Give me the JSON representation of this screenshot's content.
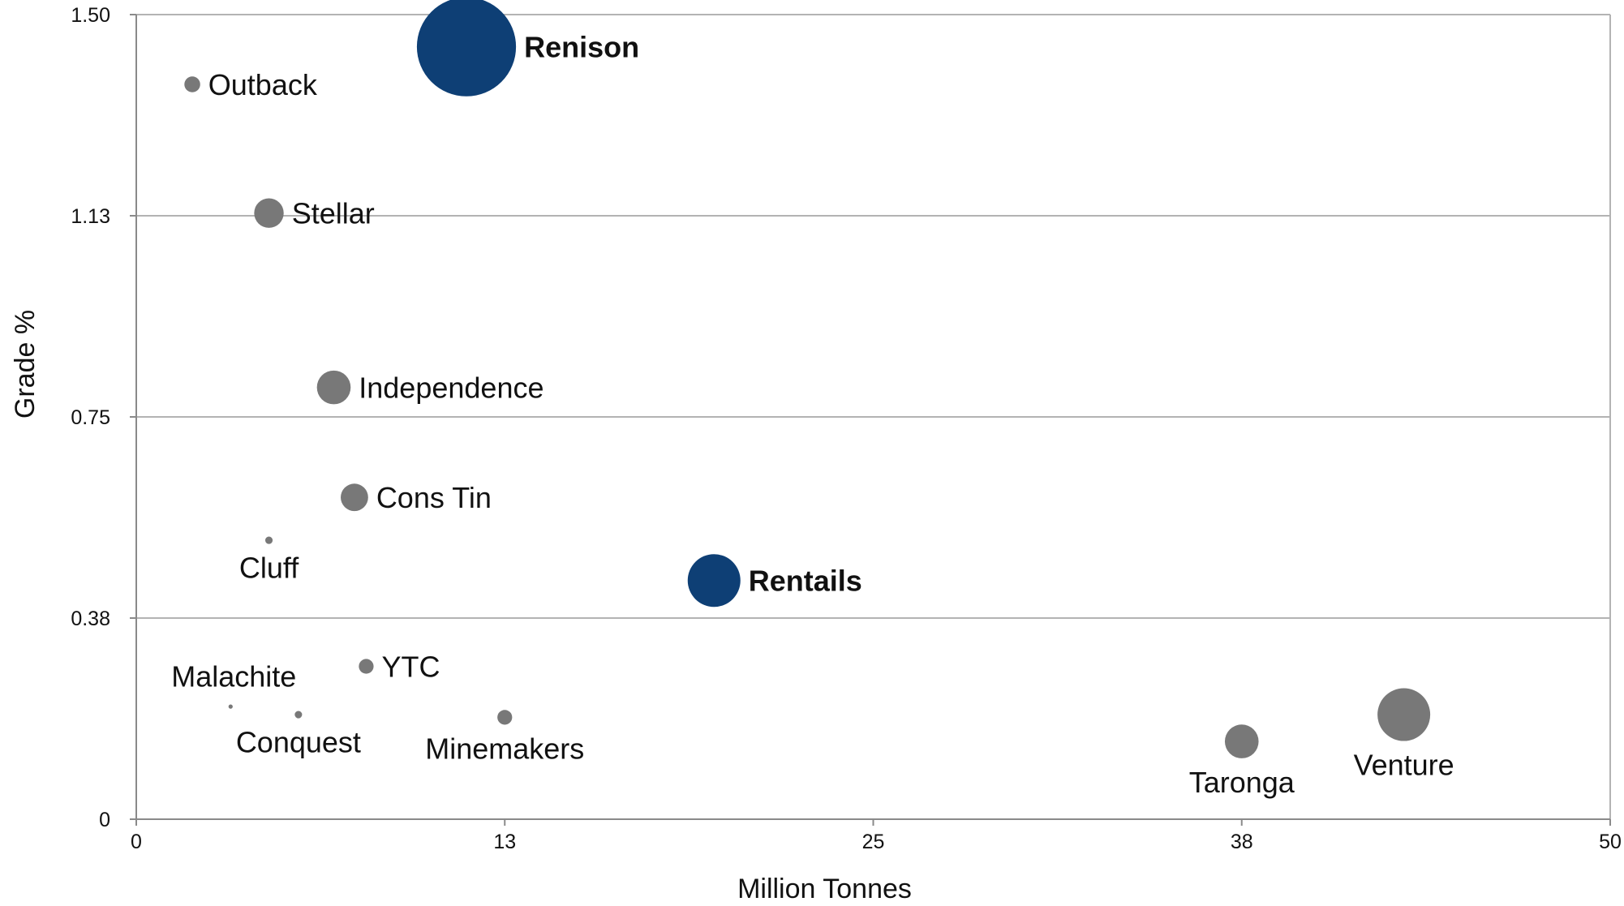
{
  "chart_data": {
    "type": "scatter",
    "xlabel": "Million Tonnes",
    "ylabel": "Grade %",
    "xlim": [
      0,
      50
    ],
    "ylim": [
      0,
      1.5
    ],
    "x_tick_labels": [
      "0",
      "13",
      "25",
      "38",
      "50"
    ],
    "y_tick_labels": [
      "0",
      "0.38",
      "0.75",
      "1.13",
      "1.50"
    ],
    "grid": "horizontal",
    "colors": {
      "highlight": "#0e3f75",
      "other": "#787878",
      "grid": "#b3b3b3",
      "axis": "#8a8a8a"
    },
    "series": [
      {
        "label": "Renison",
        "x": 11.2,
        "y": 1.44,
        "size": 47,
        "highlight": true,
        "label_pos": "right"
      },
      {
        "label": "Outback",
        "x": 1.9,
        "y": 1.37,
        "size": 7.5,
        "highlight": false,
        "label_pos": "right"
      },
      {
        "label": "Stellar",
        "x": 4.5,
        "y": 1.13,
        "size": 14,
        "highlight": false,
        "label_pos": "right"
      },
      {
        "label": "Independence",
        "x": 6.7,
        "y": 0.805,
        "size": 16,
        "highlight": false,
        "label_pos": "right"
      },
      {
        "label": "Cons Tin",
        "x": 7.4,
        "y": 0.6,
        "size": 13,
        "highlight": false,
        "label_pos": "right"
      },
      {
        "label": "Cluff",
        "x": 4.5,
        "y": 0.52,
        "size": 3.5,
        "highlight": false,
        "label_pos": "below"
      },
      {
        "label": "Rentails",
        "x": 19.6,
        "y": 0.445,
        "size": 25,
        "highlight": true,
        "label_pos": "right"
      },
      {
        "label": "YTC",
        "x": 7.8,
        "y": 0.285,
        "size": 7,
        "highlight": false,
        "label_pos": "right"
      },
      {
        "label": "Malachite",
        "x": 3.2,
        "y": 0.21,
        "size": 2,
        "highlight": false,
        "label_pos": "above"
      },
      {
        "label": "Conquest",
        "x": 5.5,
        "y": 0.195,
        "size": 3.5,
        "highlight": false,
        "label_pos": "below"
      },
      {
        "label": "Minemakers",
        "x": 12.5,
        "y": 0.19,
        "size": 7,
        "highlight": false,
        "label_pos": "below"
      },
      {
        "label": "Taronga",
        "x": 37.5,
        "y": 0.145,
        "size": 16,
        "highlight": false,
        "label_pos": "below"
      },
      {
        "label": "Venture",
        "x": 43.0,
        "y": 0.195,
        "size": 25,
        "highlight": false,
        "label_pos": "below"
      }
    ]
  }
}
